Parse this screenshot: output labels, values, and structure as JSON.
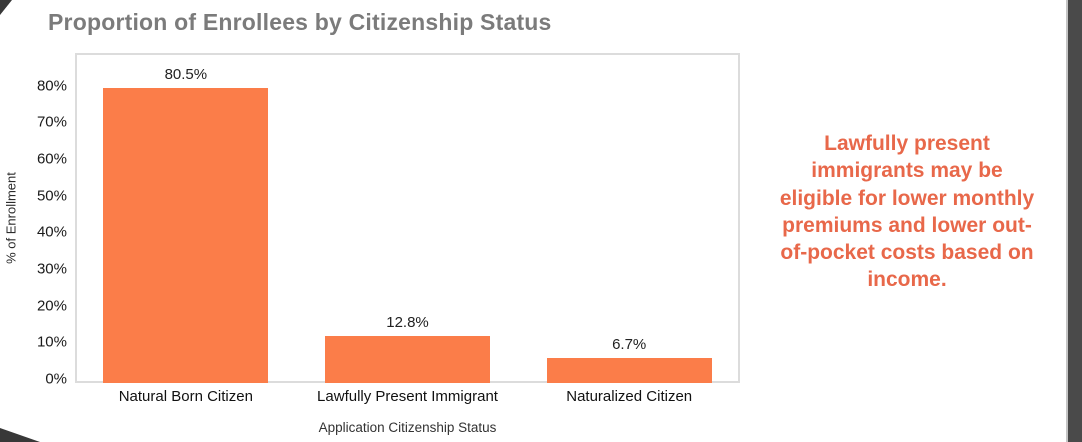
{
  "title": "Proportion of Enrollees by Citizenship Status",
  "annotation": {
    "text": "Lawfully present immigrants may be eligible for lower monthly premiums and lower out-of-pocket costs based on income.",
    "lines": [
      "Lawfully present",
      "immigrants may be",
      "eligible for lower monthly",
      "premiums and lower out-",
      "of-pocket costs based on",
      "income."
    ],
    "color": "#E8684A"
  },
  "colors": {
    "title": "#7B7B7B",
    "bar": "#FB7D49",
    "plot_border": "#DCDCDC",
    "edge_strip": "#4A4A4A"
  },
  "chart_data": {
    "type": "bar",
    "title": "Proportion of Enrollees by Citizenship Status",
    "categories": [
      "Natural Born Citizen",
      "Lawfully Present Immigrant",
      "Naturalized Citizen"
    ],
    "values": [
      80.5,
      12.8,
      6.7
    ],
    "labels": [
      "80.5%",
      "12.8%",
      "6.7%"
    ],
    "xlabel": "Application Citizenship Status",
    "ylabel": "% of Enrollment",
    "ylim": [
      0,
      90
    ],
    "yticks": [
      0,
      10,
      20,
      30,
      40,
      50,
      60,
      70,
      80
    ],
    "ytick_suffix": "%",
    "grid": false,
    "legend": false,
    "bar_color": "#FB7D49"
  }
}
